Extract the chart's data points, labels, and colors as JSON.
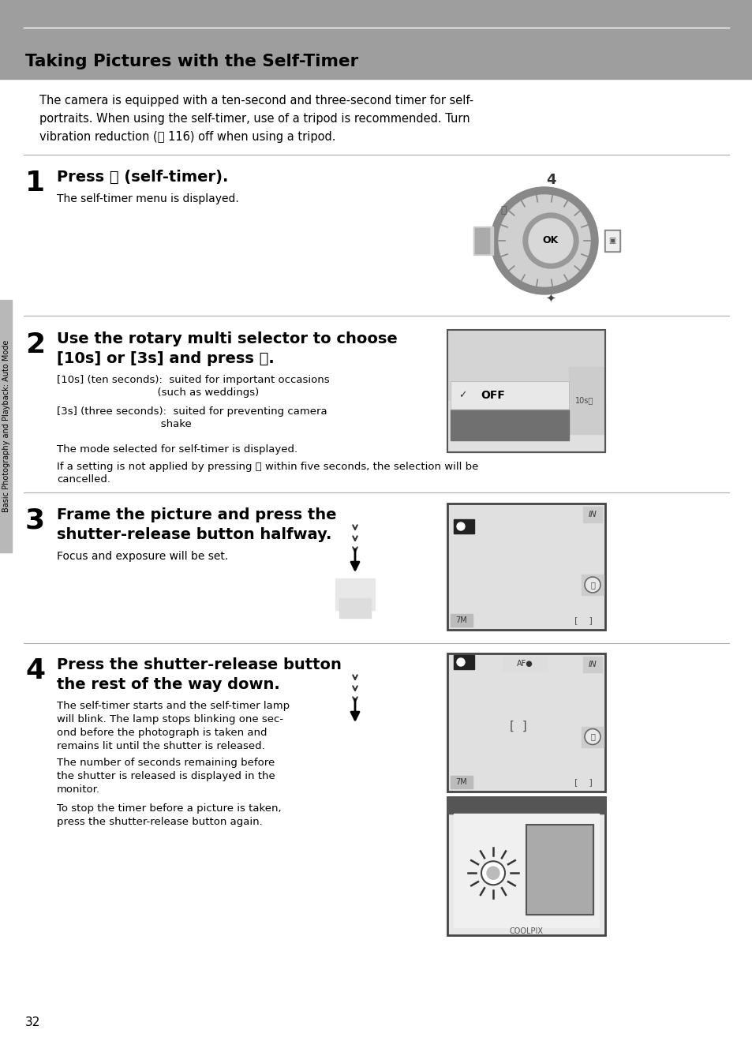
{
  "bg_color": "#ffffff",
  "header_bg": "#9a9a9a",
  "header_text": "Taking Pictures with the Self-Timer",
  "page_number": "32",
  "intro_lines": [
    "The camera is equipped with a ten-second and three-second timer for self-",
    "portraits. When using the self-timer, use of a tripod is recommended. Turn",
    "vibration reduction (Ⓡ 116) off when using a tripod."
  ],
  "sidebar_text": "Basic Photography and Playback: Auto Mode",
  "step1_num": "1",
  "step1_head": "Press ⌛ (self-timer).",
  "step1_body": "The self-timer menu is displayed.",
  "step2_num": "2",
  "step2_head1": "Use the rotary multi selector to choose",
  "step2_head2": "[10s] or [3s] and press Ⓢ.",
  "step2_b1a": "[10s] (ten seconds):  suited for important occasions",
  "step2_b1b": "                              (such as weddings)",
  "step2_b2a": "[3s] (three seconds):  suited for preventing camera",
  "step2_b2b": "                               shake",
  "step2_b3": "The mode selected for self-timer is displayed.",
  "step2_b4a": "If a setting is not applied by pressing Ⓢ within five seconds, the selection will be",
  "step2_b4b": "cancelled.",
  "step3_num": "3",
  "step3_head1": "Frame the picture and press the",
  "step3_head2": "shutter-release button halfway.",
  "step3_body": "Focus and exposure will be set.",
  "step4_num": "4",
  "step4_head1": "Press the shutter-release button",
  "step4_head2": "the rest of the way down.",
  "step4_b1": [
    "The self-timer starts and the self-timer lamp",
    "will blink. The lamp stops blinking one sec-",
    "ond before the photograph is taken and",
    "remains lit until the shutter is released."
  ],
  "step4_b2": [
    "The number of seconds remaining before",
    "the shutter is released is displayed in the",
    "monitor."
  ],
  "step4_b3": [
    "To stop the timer before a picture is taken,",
    "press the shutter-release button again."
  ]
}
